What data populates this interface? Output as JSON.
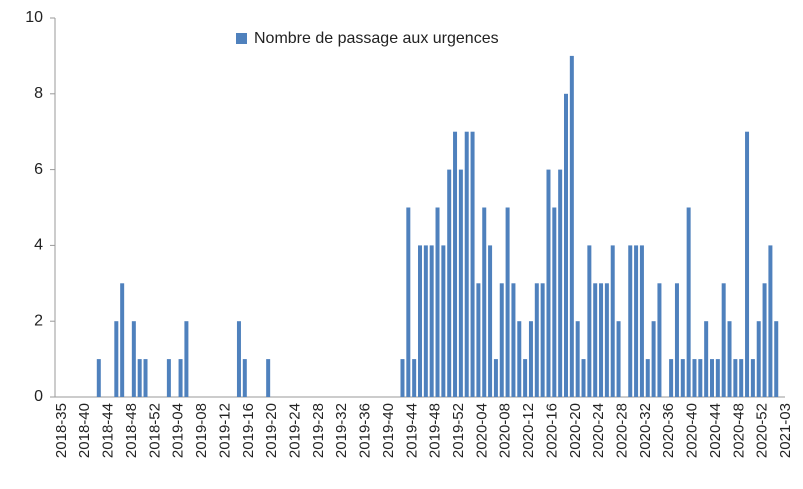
{
  "chart_data": {
    "type": "bar",
    "categories": [
      "2018-35",
      null,
      null,
      null,
      "2018-40",
      null,
      null,
      null,
      "2018-44",
      null,
      null,
      null,
      "2018-48",
      null,
      null,
      null,
      "2018-52",
      null,
      null,
      null,
      "2019-04",
      null,
      null,
      null,
      "2019-08",
      null,
      null,
      null,
      "2019-12",
      null,
      null,
      null,
      "2019-16",
      null,
      null,
      null,
      "2019-20",
      null,
      null,
      null,
      "2019-24",
      null,
      null,
      null,
      "2019-28",
      null,
      null,
      null,
      "2019-32",
      null,
      null,
      null,
      "2019-36",
      null,
      null,
      null,
      "2019-40",
      null,
      null,
      null,
      "2019-44",
      null,
      null,
      null,
      "2019-48",
      null,
      null,
      null,
      "2019-52",
      null,
      null,
      null,
      "2020-04",
      null,
      null,
      null,
      "2020-08",
      null,
      null,
      null,
      "2020-12",
      null,
      null,
      null,
      "2020-16",
      null,
      null,
      null,
      "2020-20",
      null,
      null,
      null,
      "2020-24",
      null,
      null,
      null,
      "2020-28",
      null,
      null,
      null,
      "2020-32",
      null,
      null,
      null,
      "2020-36",
      null,
      null,
      null,
      "2020-40",
      null,
      null,
      null,
      "2020-44",
      null,
      null,
      null,
      "2020-48",
      null,
      null,
      null,
      "2020-52",
      null,
      null,
      null,
      "2021-03"
    ],
    "series": [
      {
        "name": "Nombre de passage aux urgences",
        "color": "#4f81bd",
        "values": [
          0,
          0,
          0,
          0,
          0,
          0,
          0,
          1,
          0,
          0,
          2,
          3,
          0,
          2,
          1,
          1,
          0,
          0,
          0,
          1,
          0,
          1,
          2,
          0,
          0,
          0,
          0,
          0,
          0,
          0,
          0,
          2,
          1,
          0,
          0,
          0,
          1,
          0,
          0,
          0,
          0,
          0,
          0,
          0,
          0,
          0,
          0,
          0,
          0,
          0,
          0,
          0,
          0,
          0,
          0,
          0,
          0,
          0,
          0,
          1,
          5,
          1,
          4,
          4,
          4,
          5,
          4,
          6,
          7,
          6,
          7,
          7,
          3,
          5,
          4,
          1,
          3,
          5,
          3,
          2,
          1,
          2,
          3,
          3,
          6,
          5,
          6,
          8,
          9,
          2,
          1,
          4,
          3,
          3,
          3,
          4,
          2,
          0,
          4,
          4,
          4,
          1,
          2,
          3,
          0,
          1,
          3,
          1,
          5,
          1,
          1,
          2,
          1,
          1,
          3,
          2,
          1,
          1,
          7,
          1,
          2,
          3,
          4,
          2,
          0
        ]
      }
    ],
    "ylim": [
      0,
      10
    ],
    "yticks": [
      0,
      2,
      4,
      6,
      8,
      10
    ],
    "grid": false,
    "legend": "top"
  }
}
